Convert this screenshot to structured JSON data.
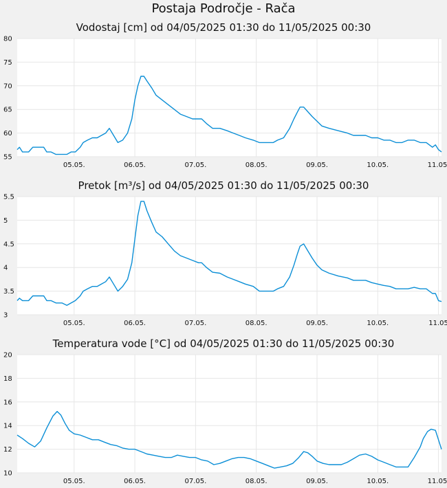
{
  "page": {
    "title": "Postaja Področje - Rača"
  },
  "chart_data": [
    {
      "type": "line",
      "title": "Vodostaj [cm] od 04/05/2025 01:30 do 11/05/2025 00:30",
      "xlabel": "",
      "ylabel": "",
      "ylim": [
        55,
        80
      ],
      "yticks": [
        "80",
        "75",
        "70",
        "65",
        "60",
        "55"
      ],
      "xlim": [
        4.0625,
        11.05
      ],
      "xticks": [
        {
          "x": 5,
          "label": "05.05."
        },
        {
          "x": 6,
          "label": "06.05."
        },
        {
          "x": 7,
          "label": "07.05."
        },
        {
          "x": 8,
          "label": "08.05."
        },
        {
          "x": 9,
          "label": "09.05."
        },
        {
          "x": 10,
          "label": "10.05."
        },
        {
          "x": 11,
          "label": "11.05."
        }
      ],
      "grid": true,
      "series": [
        {
          "name": "Vodostaj",
          "x": [
            4.0625,
            4.1,
            4.15,
            4.25,
            4.32,
            4.4,
            4.5,
            4.55,
            4.62,
            4.7,
            4.8,
            4.88,
            4.95,
            5.02,
            5.1,
            5.15,
            5.22,
            5.3,
            5.38,
            5.45,
            5.52,
            5.58,
            5.65,
            5.72,
            5.8,
            5.88,
            5.95,
            6.0,
            6.05,
            6.1,
            6.15,
            6.2,
            6.28,
            6.35,
            6.45,
            6.55,
            6.65,
            6.75,
            6.85,
            6.95,
            7.05,
            7.1,
            7.18,
            7.28,
            7.4,
            7.52,
            7.62,
            7.72,
            7.82,
            7.95,
            8.05,
            8.12,
            8.2,
            8.28,
            8.35,
            8.45,
            8.55,
            8.62,
            8.68,
            8.72,
            8.78,
            8.85,
            8.92,
            9.0,
            9.08,
            9.2,
            9.35,
            9.5,
            9.6,
            9.7,
            9.8,
            9.9,
            10.0,
            10.1,
            10.2,
            10.3,
            10.4,
            10.5,
            10.6,
            10.7,
            10.8,
            10.9,
            10.95,
            11.0,
            11.05
          ],
          "values": [
            56.5,
            57,
            56,
            56,
            57,
            57,
            57,
            56,
            56,
            55.5,
            55.5,
            55.5,
            56,
            56,
            57,
            58,
            58.5,
            59,
            59,
            59.5,
            60,
            61,
            59.5,
            58,
            58.5,
            60,
            63,
            67,
            70,
            72,
            72,
            71,
            69.5,
            68,
            67,
            66,
            65,
            64,
            63.5,
            63,
            63,
            63,
            62,
            61,
            61,
            60.5,
            60,
            59.5,
            59,
            58.5,
            58,
            58,
            58,
            58,
            58.5,
            59,
            61,
            63,
            64.5,
            65.5,
            65.5,
            64.5,
            63.5,
            62.5,
            61.5,
            61,
            60.5,
            60,
            59.5,
            59.5,
            59.5,
            59,
            59,
            58.5,
            58.5,
            58,
            58,
            58.5,
            58.5,
            58,
            58,
            57,
            57.5,
            56.5,
            56
          ]
        }
      ]
    },
    {
      "type": "line",
      "title": "Pretok [m³/s] od 04/05/2025 01:30 do 11/05/2025 00:30",
      "xlabel": "",
      "ylabel": "",
      "ylim": [
        3,
        5.5
      ],
      "yticks": [
        "5.5",
        "5",
        "4.5",
        "4",
        "3.5",
        "3"
      ],
      "xlim": [
        4.0625,
        11.05
      ],
      "xticks": [
        {
          "x": 5,
          "label": "05.05."
        },
        {
          "x": 6,
          "label": "06.05."
        },
        {
          "x": 7,
          "label": "07.05."
        },
        {
          "x": 8,
          "label": "08.05."
        },
        {
          "x": 9,
          "label": "09.05."
        },
        {
          "x": 10,
          "label": "10.05."
        },
        {
          "x": 11,
          "label": "11.05"
        }
      ],
      "grid": true,
      "series": [
        {
          "name": "Pretok",
          "x": [
            4.0625,
            4.1,
            4.15,
            4.25,
            4.32,
            4.4,
            4.5,
            4.55,
            4.62,
            4.7,
            4.8,
            4.88,
            4.95,
            5.02,
            5.1,
            5.15,
            5.22,
            5.3,
            5.38,
            5.45,
            5.52,
            5.58,
            5.65,
            5.72,
            5.8,
            5.88,
            5.95,
            6.0,
            6.05,
            6.1,
            6.15,
            6.2,
            6.28,
            6.35,
            6.45,
            6.55,
            6.65,
            6.75,
            6.85,
            6.95,
            7.05,
            7.1,
            7.18,
            7.28,
            7.4,
            7.52,
            7.62,
            7.72,
            7.82,
            7.95,
            8.05,
            8.12,
            8.2,
            8.28,
            8.35,
            8.45,
            8.55,
            8.62,
            8.68,
            8.72,
            8.78,
            8.85,
            8.92,
            9.0,
            9.08,
            9.2,
            9.35,
            9.5,
            9.6,
            9.7,
            9.8,
            9.9,
            10.0,
            10.1,
            10.2,
            10.3,
            10.4,
            10.5,
            10.6,
            10.7,
            10.8,
            10.9,
            10.95,
            11.0,
            11.05
          ],
          "values": [
            3.3,
            3.35,
            3.3,
            3.3,
            3.4,
            3.4,
            3.4,
            3.3,
            3.3,
            3.25,
            3.25,
            3.2,
            3.25,
            3.3,
            3.4,
            3.5,
            3.55,
            3.6,
            3.6,
            3.65,
            3.7,
            3.8,
            3.65,
            3.5,
            3.6,
            3.75,
            4.1,
            4.6,
            5.1,
            5.4,
            5.4,
            5.2,
            4.95,
            4.75,
            4.65,
            4.5,
            4.35,
            4.25,
            4.2,
            4.15,
            4.1,
            4.1,
            4.0,
            3.9,
            3.88,
            3.8,
            3.75,
            3.7,
            3.65,
            3.6,
            3.5,
            3.5,
            3.5,
            3.5,
            3.55,
            3.6,
            3.8,
            4.05,
            4.3,
            4.45,
            4.5,
            4.35,
            4.2,
            4.05,
            3.95,
            3.88,
            3.82,
            3.78,
            3.73,
            3.73,
            3.73,
            3.68,
            3.65,
            3.62,
            3.6,
            3.55,
            3.55,
            3.55,
            3.58,
            3.55,
            3.55,
            3.45,
            3.45,
            3.3,
            3.28
          ]
        }
      ]
    },
    {
      "type": "line",
      "title": "Temperatura vode [°C] od 04/05/2025 01:30 do 11/05/2025 00:30",
      "xlabel": "",
      "ylabel": "",
      "ylim": [
        10,
        20
      ],
      "yticks": [
        "20",
        "18",
        "16",
        "14",
        "12",
        "10"
      ],
      "xlim": [
        4.0625,
        11.05
      ],
      "xticks": [
        {
          "x": 5,
          "label": "05.05."
        },
        {
          "x": 6,
          "label": "06.05."
        },
        {
          "x": 7,
          "label": "07.05."
        },
        {
          "x": 8,
          "label": "08.05."
        },
        {
          "x": 9,
          "label": "09.05."
        },
        {
          "x": 10,
          "label": "10.05."
        },
        {
          "x": 11,
          "label": "11.05."
        }
      ],
      "grid": true,
      "series": [
        {
          "name": "Temperatura vode",
          "x": [
            4.0625,
            4.15,
            4.25,
            4.35,
            4.45,
            4.55,
            4.65,
            4.72,
            4.78,
            4.85,
            4.92,
            5.0,
            5.1,
            5.2,
            5.3,
            5.4,
            5.5,
            5.6,
            5.7,
            5.8,
            5.9,
            6.0,
            6.1,
            6.2,
            6.3,
            6.4,
            6.5,
            6.6,
            6.7,
            6.8,
            6.9,
            7.0,
            7.1,
            7.2,
            7.3,
            7.4,
            7.5,
            7.6,
            7.7,
            7.8,
            7.9,
            8.0,
            8.1,
            8.2,
            8.3,
            8.4,
            8.5,
            8.6,
            8.7,
            8.78,
            8.85,
            8.92,
            9.0,
            9.1,
            9.2,
            9.3,
            9.4,
            9.5,
            9.6,
            9.7,
            9.8,
            9.9,
            10.0,
            10.1,
            10.2,
            10.3,
            10.4,
            10.5,
            10.6,
            10.7,
            10.75,
            10.82,
            10.88,
            10.95,
            11.0,
            11.05
          ],
          "values": [
            13.2,
            12.9,
            12.5,
            12.2,
            12.7,
            13.8,
            14.8,
            15.2,
            14.9,
            14.2,
            13.6,
            13.3,
            13.2,
            13.0,
            12.8,
            12.8,
            12.6,
            12.4,
            12.3,
            12.1,
            12.0,
            12.0,
            11.8,
            11.6,
            11.5,
            11.4,
            11.3,
            11.3,
            11.5,
            11.4,
            11.3,
            11.3,
            11.1,
            11.0,
            10.7,
            10.8,
            11.0,
            11.2,
            11.3,
            11.3,
            11.2,
            11.0,
            10.8,
            10.6,
            10.4,
            10.5,
            10.6,
            10.8,
            11.3,
            11.8,
            11.7,
            11.4,
            11.0,
            10.8,
            10.7,
            10.7,
            10.7,
            10.9,
            11.2,
            11.5,
            11.6,
            11.4,
            11.1,
            10.9,
            10.7,
            10.5,
            10.5,
            10.5,
            11.3,
            12.2,
            12.9,
            13.5,
            13.7,
            13.6,
            12.8,
            12.0
          ]
        }
      ]
    }
  ]
}
